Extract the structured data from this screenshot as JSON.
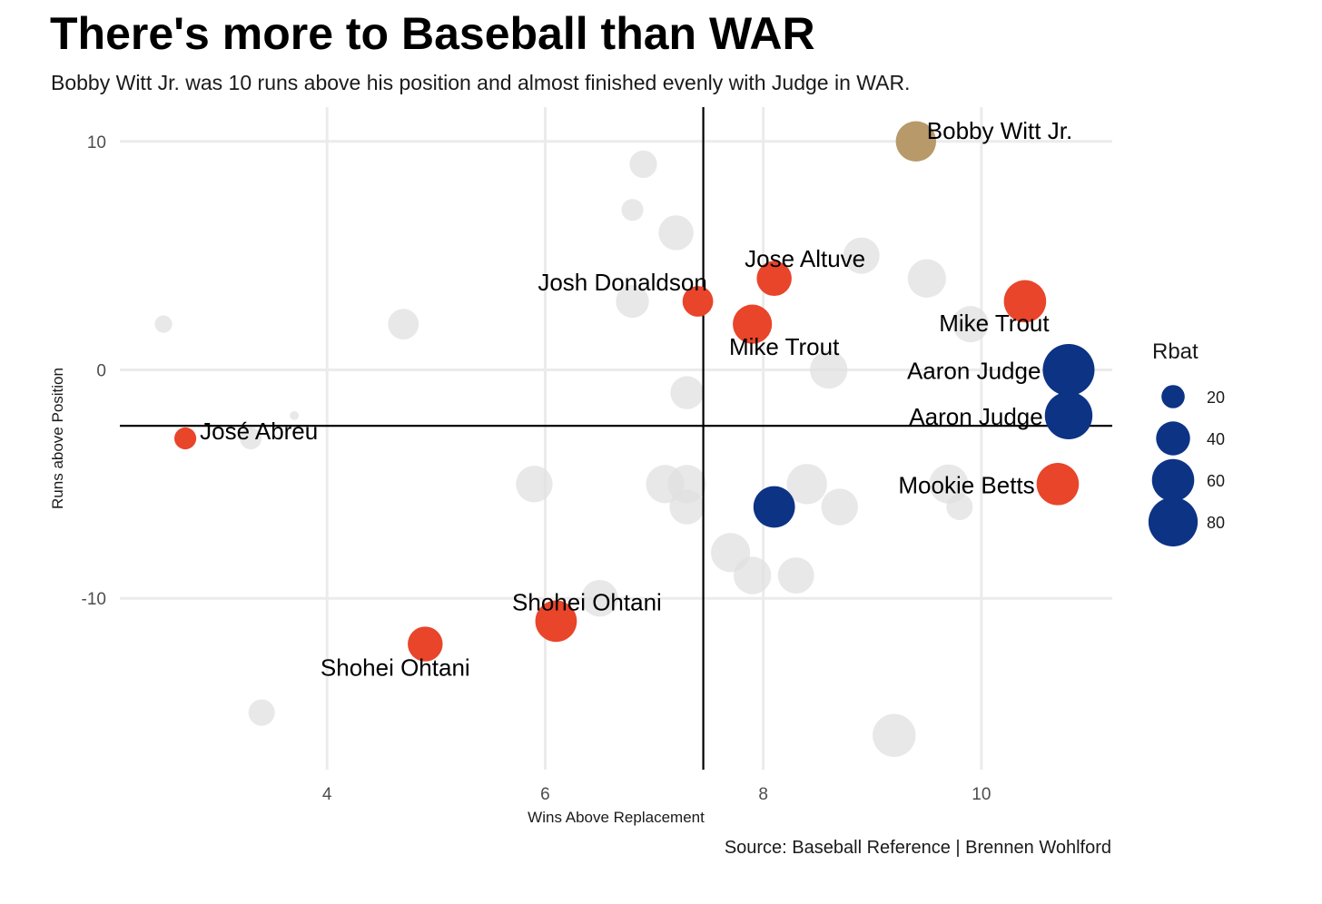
{
  "header": {
    "title": "There's more to Baseball than WAR",
    "subtitle": "Bobby Witt Jr. was 10 runs above his position and almost finished evenly with Judge in WAR."
  },
  "footer": {
    "caption": "Source: Baseball Reference | Brennen Wohlford"
  },
  "chart_data": {
    "type": "scatter",
    "xlabel": "Wins Above Replacement",
    "ylabel": "Runs above Position",
    "xlim": [
      2.1,
      11.2
    ],
    "ylim": [
      -17.5,
      11.5
    ],
    "x_ticks": [
      4,
      6,
      8,
      10
    ],
    "y_ticks": [
      10,
      0,
      -10
    ],
    "y_tick_labels": [
      "10",
      "0",
      "-10"
    ],
    "reference_lines": {
      "x": 7.45,
      "y": -2.45
    },
    "grid": true,
    "size_legend": {
      "title": "Rbat",
      "position": "right",
      "values": [
        20,
        40,
        60,
        80
      ]
    },
    "colors": {
      "background_points": "#e0e0e0",
      "red": "#e8452a",
      "navy": "#0d3385",
      "gold": "#b8996a"
    },
    "background_points": [
      {
        "x": 2.5,
        "y": 2,
        "rbat": 12
      },
      {
        "x": 3.3,
        "y": -3,
        "rbat": 18
      },
      {
        "x": 3.4,
        "y": -15,
        "rbat": 25
      },
      {
        "x": 3.7,
        "y": -2,
        "rbat": 4
      },
      {
        "x": 4.7,
        "y": 2,
        "rbat": 33
      },
      {
        "x": 5.9,
        "y": -5,
        "rbat": 46
      },
      {
        "x": 6.5,
        "y": -10,
        "rbat": 46
      },
      {
        "x": 6.8,
        "y": 7,
        "rbat": 18
      },
      {
        "x": 6.8,
        "y": 3,
        "rbat": 38
      },
      {
        "x": 6.9,
        "y": 9,
        "rbat": 27
      },
      {
        "x": 7.1,
        "y": -5,
        "rbat": 50
      },
      {
        "x": 7.2,
        "y": 6,
        "rbat": 42
      },
      {
        "x": 7.3,
        "y": -1,
        "rbat": 38
      },
      {
        "x": 7.3,
        "y": -5,
        "rbat": 50
      },
      {
        "x": 7.3,
        "y": -6,
        "rbat": 42
      },
      {
        "x": 7.7,
        "y": -8,
        "rbat": 52
      },
      {
        "x": 7.9,
        "y": -9,
        "rbat": 48
      },
      {
        "x": 8.3,
        "y": -9,
        "rbat": 45
      },
      {
        "x": 8.4,
        "y": -5,
        "rbat": 55
      },
      {
        "x": 8.6,
        "y": 0,
        "rbat": 48
      },
      {
        "x": 8.7,
        "y": -6,
        "rbat": 46
      },
      {
        "x": 8.9,
        "y": 5,
        "rbat": 45
      },
      {
        "x": 9.2,
        "y": -16,
        "rbat": 62
      },
      {
        "x": 9.5,
        "y": 4,
        "rbat": 50
      },
      {
        "x": 9.7,
        "y": -5,
        "rbat": 52
      },
      {
        "x": 9.8,
        "y": -6,
        "rbat": 25
      },
      {
        "x": 9.9,
        "y": 2,
        "rbat": 45
      }
    ],
    "highlighted_points": [
      {
        "name": "Bobby Witt Jr.",
        "x": 9.4,
        "y": 10,
        "rbat": 55,
        "color": "gold",
        "label_pos": "right"
      },
      {
        "name": "Jose Altuve",
        "x": 8.1,
        "y": 4,
        "rbat": 42,
        "color": "red",
        "label_pos": "above-right"
      },
      {
        "name": "Josh Donaldson",
        "x": 7.4,
        "y": 3,
        "rbat": 33,
        "color": "red",
        "label_pos": "above-left"
      },
      {
        "name": "Mike Trout",
        "x": 7.9,
        "y": 2,
        "rbat": 52,
        "color": "red",
        "label_pos": "below-right"
      },
      {
        "name": "Mike Trout",
        "x": 10.4,
        "y": 3,
        "rbat": 60,
        "color": "red",
        "label_pos": "below-left"
      },
      {
        "name": "Aaron Judge",
        "x": 10.8,
        "y": 0,
        "rbat": 88,
        "color": "navy",
        "label_pos": "left"
      },
      {
        "name": "Aaron Judge",
        "x": 10.8,
        "y": -2,
        "rbat": 75,
        "color": "navy",
        "label_pos": "left"
      },
      {
        "name": "José Abreu",
        "x": 2.7,
        "y": -3,
        "rbat": 18,
        "color": "red",
        "label_pos": "right"
      },
      {
        "name": "Mookie Betts",
        "x": 10.7,
        "y": -5,
        "rbat": 60,
        "color": "red",
        "label_pos": "left"
      },
      {
        "name": "",
        "x": 8.1,
        "y": -6,
        "rbat": 58,
        "color": "navy",
        "label_pos": "none"
      },
      {
        "name": "Shohei Ohtani",
        "x": 6.1,
        "y": -11,
        "rbat": 58,
        "color": "red",
        "label_pos": "above"
      },
      {
        "name": "Shohei Ohtani",
        "x": 4.9,
        "y": -12,
        "rbat": 42,
        "color": "red",
        "label_pos": "below-left"
      }
    ]
  }
}
